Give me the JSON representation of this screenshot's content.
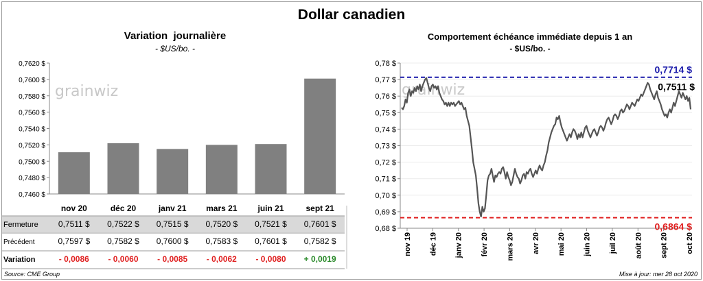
{
  "title": "Dollar canadien",
  "source": "Source: CME Group",
  "updated": "Mise à jour: mer 28 oct 2020",
  "watermark": "grainwiz",
  "colors": {
    "bar": "#808080",
    "line": "#555555",
    "blue": "#1a1aaa",
    "red": "#e02020",
    "green": "#2a8a2a"
  },
  "chart_data": [
    {
      "type": "bar",
      "title": "Variation  journalière",
      "subtitle": "- $US/bo. -",
      "categories": [
        "nov 20",
        "déc 20",
        "janv 21",
        "mars 21",
        "juin 21",
        "sept 21"
      ],
      "values": [
        0.7511,
        0.7522,
        0.7515,
        0.752,
        0.7521,
        0.7601
      ],
      "ylim": [
        0.746,
        0.762
      ],
      "yticks": [
        "0,7460 $",
        "0,7480 $",
        "0,7500 $",
        "0,7520 $",
        "0,7540 $",
        "0,7560 $",
        "0,7580 $",
        "0,7600 $",
        "0,7620 $"
      ],
      "table": [
        {
          "label": "Fermeture",
          "cells": [
            "0,7511  $",
            "0,7522  $",
            "0,7515  $",
            "0,7520  $",
            "0,7521  $",
            "0,7601  $"
          ],
          "shaded": true
        },
        {
          "label": "Précédent",
          "cells": [
            "0,7597  $",
            "0,7582  $",
            "0,7600  $",
            "0,7583  $",
            "0,7601  $",
            "0,7582  $"
          ],
          "shaded": false
        },
        {
          "label": "Variation",
          "cells": [
            "- 0,0086",
            "- 0,0060",
            "- 0,0085",
            "- 0,0062",
            "- 0,0080",
            "+ 0,0019"
          ],
          "signs": [
            "neg",
            "neg",
            "neg",
            "neg",
            "neg",
            "pos"
          ],
          "shaded": false
        }
      ]
    },
    {
      "type": "line",
      "title": "Comportement échéance immédiate depuis 1 an",
      "subtitle": "- $US/bo. -",
      "ylim": [
        0.68,
        0.78
      ],
      "yticks": [
        "0,68 $",
        "0,69 $",
        "0,70 $",
        "0,71 $",
        "0,72 $",
        "0,73 $",
        "0,74 $",
        "0,75 $",
        "0,76 $",
        "0,77 $",
        "0,78 $"
      ],
      "xticks": [
        "nov 19",
        "déc 19",
        "janv 20",
        "févr 20",
        "mars 20",
        "avr 20",
        "mai 20",
        "juin 20",
        "juil 20",
        "août 20",
        "sept 20",
        "oct 20"
      ],
      "high": {
        "value": 0.7714,
        "label": "0,7714  $"
      },
      "low": {
        "value": 0.6864,
        "label": "0,6864  $"
      },
      "last": {
        "value": 0.7511,
        "label": "0,7511  $"
      },
      "series": [
        {
          "values": [
            0.753,
            0.752,
            0.754,
            0.758,
            0.756,
            0.762,
            0.764,
            0.76,
            0.763,
            0.762,
            0.765,
            0.763,
            0.766,
            0.764,
            0.767,
            0.763,
            0.766,
            0.768,
            0.77,
            0.771,
            0.768,
            0.765,
            0.763,
            0.766,
            0.767,
            0.765,
            0.766,
            0.764,
            0.766,
            0.762,
            0.76,
            0.758,
            0.757,
            0.755,
            0.756,
            0.754,
            0.756,
            0.754,
            0.756,
            0.755,
            0.756,
            0.754,
            0.755,
            0.756,
            0.757,
            0.755,
            0.756,
            0.754,
            0.752,
            0.753,
            0.748,
            0.745,
            0.742,
            0.735,
            0.728,
            0.72,
            0.716,
            0.712,
            0.704,
            0.695,
            0.69,
            0.687,
            0.693,
            0.69,
            0.692,
            0.7,
            0.709,
            0.712,
            0.713,
            0.716,
            0.712,
            0.708,
            0.712,
            0.711,
            0.713,
            0.714,
            0.713,
            0.716,
            0.717,
            0.714,
            0.71,
            0.714,
            0.711,
            0.709,
            0.706,
            0.708,
            0.712,
            0.716,
            0.713,
            0.711,
            0.71,
            0.707,
            0.709,
            0.712,
            0.713,
            0.71,
            0.714,
            0.713,
            0.715,
            0.716,
            0.713,
            0.711,
            0.713,
            0.715,
            0.713,
            0.716,
            0.718,
            0.716,
            0.715,
            0.718,
            0.72,
            0.724,
            0.727,
            0.732,
            0.735,
            0.738,
            0.74,
            0.742,
            0.743,
            0.747,
            0.746,
            0.748,
            0.744,
            0.741,
            0.739,
            0.737,
            0.735,
            0.733,
            0.735,
            0.737,
            0.735,
            0.738,
            0.74,
            0.739,
            0.737,
            0.734,
            0.737,
            0.735,
            0.738,
            0.735,
            0.738,
            0.741,
            0.742,
            0.739,
            0.737,
            0.735,
            0.737,
            0.739,
            0.74,
            0.738,
            0.736,
            0.738,
            0.741,
            0.742,
            0.741,
            0.739,
            0.741,
            0.744,
            0.746,
            0.747,
            0.745,
            0.743,
            0.745,
            0.748,
            0.749,
            0.748,
            0.746,
            0.748,
            0.751,
            0.752,
            0.75,
            0.751,
            0.753,
            0.755,
            0.754,
            0.752,
            0.754,
            0.756,
            0.755,
            0.754,
            0.756,
            0.758,
            0.757,
            0.759,
            0.761,
            0.76,
            0.762,
            0.764,
            0.766,
            0.768,
            0.767,
            0.764,
            0.762,
            0.76,
            0.758,
            0.761,
            0.763,
            0.759,
            0.757,
            0.755,
            0.752,
            0.75,
            0.748,
            0.749,
            0.747,
            0.75,
            0.752,
            0.75,
            0.753,
            0.756,
            0.754,
            0.757,
            0.76,
            0.763,
            0.761,
            0.759,
            0.762,
            0.76,
            0.758,
            0.76,
            0.757,
            0.759,
            0.752
          ]
        }
      ]
    }
  ]
}
